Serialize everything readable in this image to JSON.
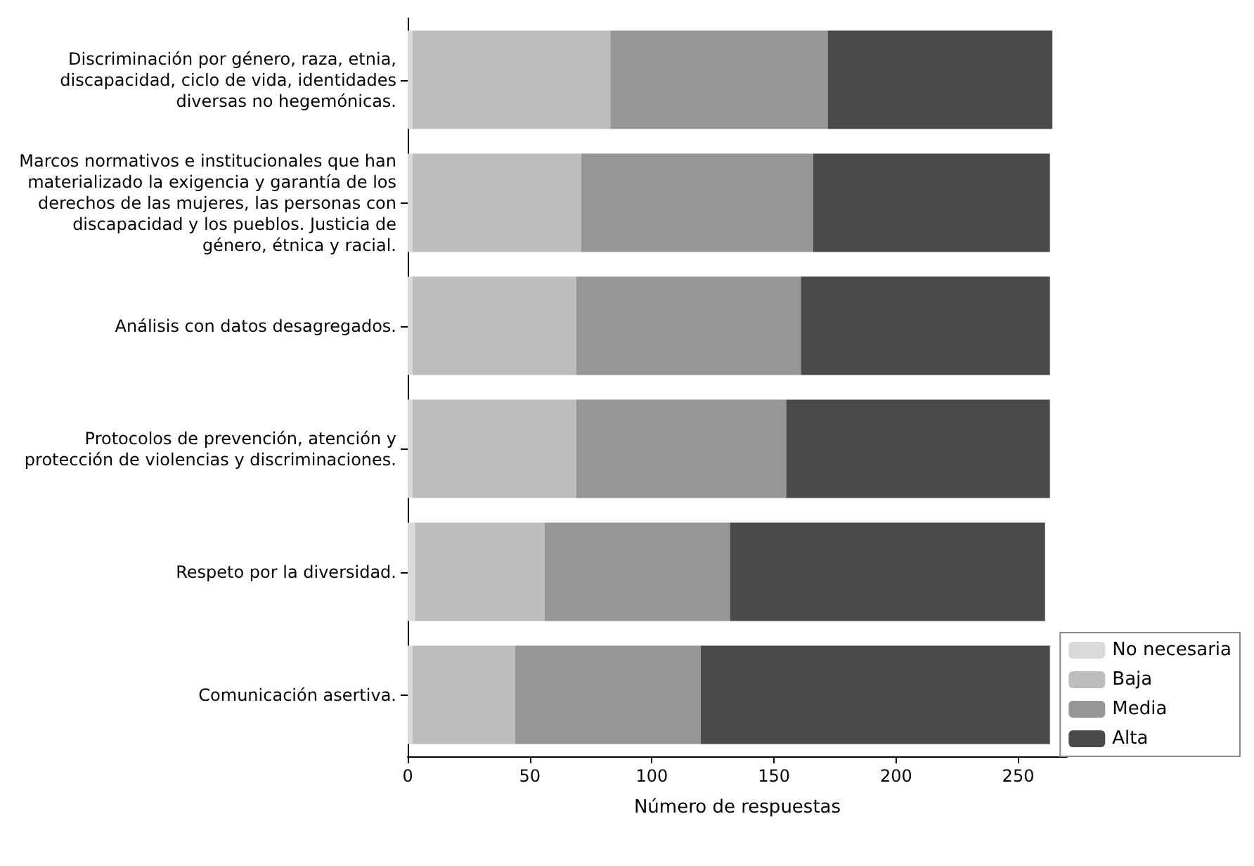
{
  "chart_data": {
    "type": "bar",
    "orientation": "horizontal",
    "stacked": true,
    "xlabel": "Número de respuestas",
    "categories": [
      "Discriminación por género, raza, etnia,\ndiscapacidad, ciclo de vida, identidades\ndiversas no hegemónicas.",
      "Marcos normativos e institucionales que han\nmaterializado la exigencia y garantía de los\nderechos de las mujeres, las personas con\ndiscapacidad y los pueblos. Justicia de\ngénero, étnica y racial.",
      "Análisis con datos desagregados.",
      "Protocolos de prevención, atención y\nprotección de violencias y discriminaciones.",
      "Respeto por la diversidad.",
      "Comunicación asertiva."
    ],
    "series": [
      {
        "name": "No necesaria",
        "color": "#d9d9d9",
        "values": [
          2,
          2,
          2,
          2,
          3,
          2
        ]
      },
      {
        "name": "Baja",
        "color": "#bdbdbd",
        "values": [
          81,
          69,
          67,
          67,
          53,
          42
        ]
      },
      {
        "name": "Media",
        "color": "#969696",
        "values": [
          89,
          95,
          92,
          86,
          76,
          76
        ]
      },
      {
        "name": "Alta",
        "color": "#4a4a4a",
        "values": [
          92,
          97,
          102,
          108,
          129,
          143
        ]
      }
    ],
    "xlim": [
      0,
      270
    ],
    "xticks": [
      0,
      50,
      100,
      150,
      200,
      250
    ],
    "grid": false,
    "legend": "bottom right"
  }
}
